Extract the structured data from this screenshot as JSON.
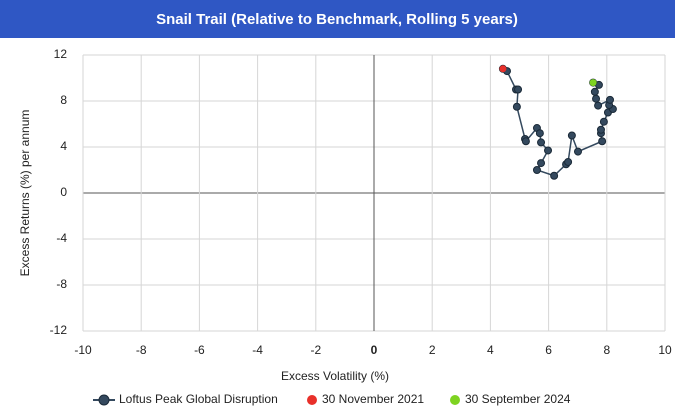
{
  "chart_data": {
    "type": "line",
    "title": "Snail Trail (Relative to Benchmark, Rolling 5 years)",
    "xlabel": "Excess Volatility (%)",
    "ylabel": "Excess Returns (%) per annum",
    "xlim": [
      -10,
      10
    ],
    "xticks": [
      -10,
      -8,
      -6,
      -4,
      -2,
      0,
      2,
      4,
      6,
      8,
      10
    ],
    "ylim": [
      -12,
      12
    ],
    "yticks": [
      -12,
      -8,
      -4,
      0,
      4,
      8,
      12
    ],
    "grid": true,
    "series": [
      {
        "name": "Loftus Peak Global Disruption",
        "color": "#34495e",
        "x": [
          4.43,
          4.57,
          4.88,
          4.95,
          4.91,
          5.19,
          5.22,
          5.6,
          5.7,
          5.74,
          5.98,
          5.74,
          5.6,
          6.19,
          6.6,
          6.67,
          6.8,
          7.01,
          7.84,
          7.8,
          7.8,
          7.9,
          8.04,
          8.21,
          8.08,
          8.11,
          7.7,
          7.63,
          7.59,
          7.73,
          7.53
        ],
        "values": [
          10.8,
          10.6,
          9.0,
          9.0,
          7.5,
          4.7,
          4.5,
          5.65,
          5.2,
          4.4,
          3.7,
          2.6,
          2.0,
          1.5,
          2.5,
          2.7,
          5.0,
          3.6,
          4.5,
          5.2,
          5.5,
          6.2,
          7.0,
          7.3,
          7.65,
          8.1,
          7.6,
          8.2,
          8.8,
          9.4,
          9.6
        ]
      },
      {
        "name": "30 November 2021",
        "color": "#e8302a",
        "x": [
          4.43
        ],
        "values": [
          10.8
        ]
      },
      {
        "name": "30 September 2024",
        "color": "#7ed321",
        "x": [
          7.53
        ],
        "values": [
          9.6
        ]
      }
    ]
  }
}
